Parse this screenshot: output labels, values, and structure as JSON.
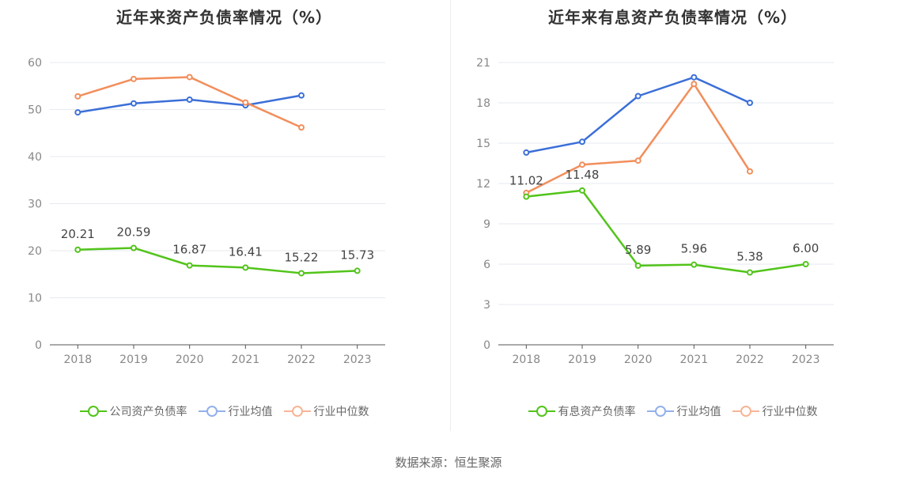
{
  "source": "数据来源：恒生聚源",
  "chart_data": [
    {
      "type": "line",
      "title": "近年来资产负债率情况（%）",
      "categories": [
        "2018",
        "2019",
        "2020",
        "2021",
        "2022",
        "2023"
      ],
      "ylim": [
        0,
        60
      ],
      "yticks": [
        0,
        10,
        20,
        30,
        40,
        50,
        60
      ],
      "grid": true,
      "legend_position": "bottom",
      "series": [
        {
          "name": "公司资产负债率",
          "color": "#52c41a",
          "values": [
            20.21,
            20.59,
            16.87,
            16.41,
            15.22,
            15.73
          ],
          "labels": [
            "20.21",
            "20.59",
            "16.87",
            "16.41",
            "15.22",
            "15.73"
          ]
        },
        {
          "name": "行业均值",
          "color": "#3b6fd8",
          "values": [
            49.4,
            51.3,
            52.1,
            50.9,
            53.0,
            null
          ]
        },
        {
          "name": "行业中位数",
          "color": "#f28e5b",
          "values": [
            52.8,
            56.5,
            56.9,
            51.5,
            46.2,
            null
          ]
        }
      ]
    },
    {
      "type": "line",
      "title": "近年来有息资产负债率情况（%）",
      "categories": [
        "2018",
        "2019",
        "2020",
        "2021",
        "2022",
        "2023"
      ],
      "ylim": [
        0,
        21
      ],
      "yticks": [
        0,
        3,
        6,
        9,
        12,
        15,
        18,
        21
      ],
      "grid": true,
      "legend_position": "bottom",
      "series": [
        {
          "name": "有息资产负债率",
          "color": "#52c41a",
          "values": [
            11.02,
            11.48,
            5.89,
            5.96,
            5.38,
            6.0
          ],
          "labels": [
            "11.02",
            "11.48",
            "5.89",
            "5.96",
            "5.38",
            "6.00"
          ]
        },
        {
          "name": "行业均值",
          "color": "#3b6fd8",
          "values": [
            14.3,
            15.1,
            18.5,
            19.9,
            18.0,
            null
          ]
        },
        {
          "name": "行业中位数",
          "color": "#f28e5b",
          "values": [
            11.3,
            13.4,
            13.7,
            19.4,
            12.9,
            null
          ]
        }
      ]
    }
  ]
}
